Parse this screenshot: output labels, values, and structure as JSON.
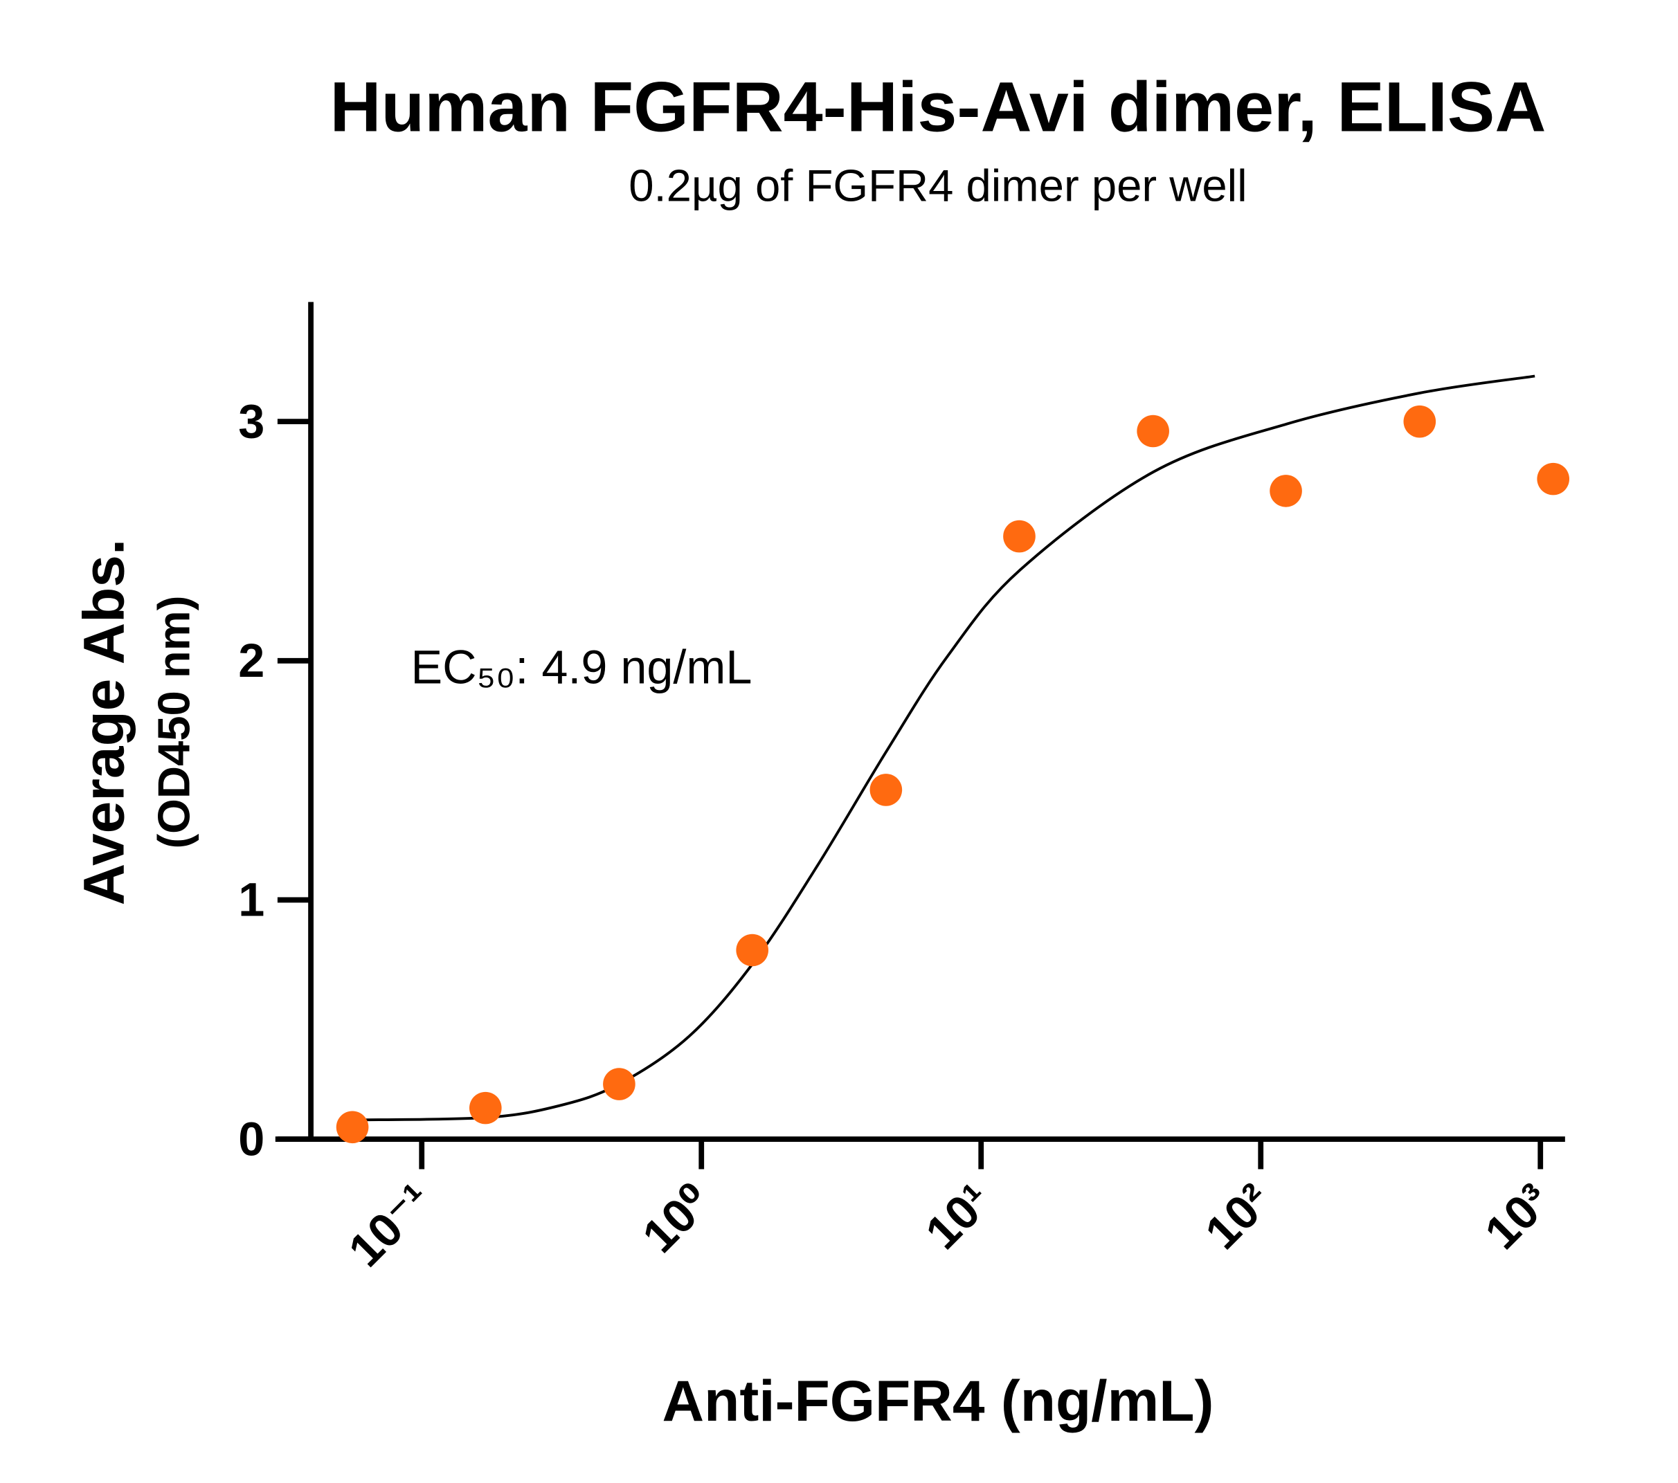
{
  "chart_data": {
    "type": "scatter",
    "title": "Human FGFR4-His-Avi dimer, ELISA",
    "subtitle": "0.2µg of FGFR4 dimer per well",
    "x_label": "Anti-FGFR4 (ng/mL)",
    "y_label": "Average Abs.",
    "y_label_unit": "(OD450 nm)",
    "annotation": "EC₅₀: 4.9 ng/mL",
    "xscale": "log",
    "xlim": [
      0.0305,
      1225
    ],
    "ylim": [
      0,
      3.5
    ],
    "xticks": [
      {
        "value": 0.1,
        "label": "10⁻¹"
      },
      {
        "value": 1,
        "label": "10⁰"
      },
      {
        "value": 10,
        "label": "10¹"
      },
      {
        "value": 100,
        "label": "10²"
      },
      {
        "value": 1000,
        "label": "10³"
      }
    ],
    "yticks": [
      0,
      1,
      2,
      3
    ],
    "points": {
      "color": "#ff6a10",
      "x": [
        0.0565,
        0.169,
        0.508,
        1.52,
        4.57,
        13.7,
        41.2,
        123,
        370,
        1111
      ],
      "y": [
        0.05,
        0.13,
        0.23,
        0.79,
        1.46,
        2.52,
        2.96,
        2.71,
        3.0,
        2.76
      ]
    },
    "fit": {
      "color": "#000000",
      "x": [
        0.0562,
        0.169,
        0.311,
        0.507,
        0.904,
        1.54,
        2.62,
        4.58,
        7.6,
        13.8,
        41.4,
        124,
        373,
        955
      ],
      "y": [
        0.08,
        0.09,
        0.14,
        0.23,
        0.43,
        0.74,
        1.15,
        1.62,
        2.02,
        2.38,
        2.79,
        2.99,
        3.12,
        3.19
      ]
    }
  }
}
